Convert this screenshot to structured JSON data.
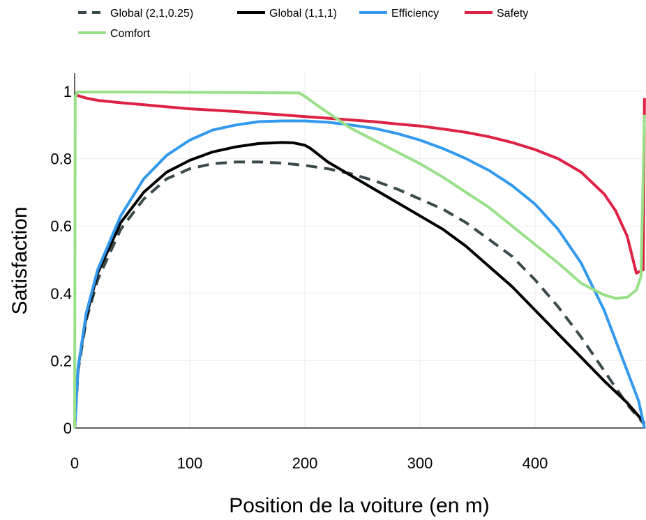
{
  "chart_data": {
    "type": "line",
    "title": "",
    "xlabel": "Position de la voiture (en m)",
    "ylabel": "Satisfaction",
    "xlim": [
      0,
      495
    ],
    "ylim": [
      0,
      1.05
    ],
    "x_ticks": [
      0,
      100,
      200,
      300,
      400
    ],
    "x_tick_labels": [
      "0",
      "100",
      "200",
      "300",
      "400"
    ],
    "y_ticks": [
      0,
      0.2,
      0.4,
      0.6,
      0.8,
      1
    ],
    "y_tick_labels": [
      "0",
      "0.2",
      "0.4",
      "0.6",
      "0.8",
      "1"
    ],
    "grid": true,
    "legend_position": "top-left",
    "series": [
      {
        "name": "Global (2,1,0.25)",
        "color": "#3b4a4a",
        "dash": "dashed",
        "x": [
          0,
          3,
          10,
          20,
          40,
          60,
          80,
          100,
          120,
          140,
          160,
          180,
          200,
          220,
          240,
          260,
          280,
          300,
          320,
          340,
          360,
          380,
          400,
          420,
          440,
          460,
          480,
          490,
          495
        ],
        "y": [
          0,
          0.17,
          0.32,
          0.44,
          0.59,
          0.68,
          0.74,
          0.77,
          0.785,
          0.79,
          0.79,
          0.787,
          0.78,
          0.77,
          0.755,
          0.735,
          0.71,
          0.68,
          0.65,
          0.61,
          0.56,
          0.51,
          0.44,
          0.36,
          0.27,
          0.17,
          0.07,
          0.03,
          0.01
        ]
      },
      {
        "name": "Global (1,1,1)",
        "color": "#000000",
        "dash": "solid",
        "x": [
          0,
          3,
          10,
          20,
          40,
          60,
          80,
          100,
          120,
          140,
          160,
          180,
          190,
          200,
          205,
          220,
          240,
          260,
          280,
          300,
          320,
          340,
          360,
          380,
          400,
          420,
          440,
          460,
          480,
          495
        ],
        "y": [
          0,
          0.18,
          0.33,
          0.46,
          0.61,
          0.7,
          0.76,
          0.795,
          0.82,
          0.835,
          0.845,
          0.848,
          0.847,
          0.84,
          0.83,
          0.79,
          0.75,
          0.71,
          0.67,
          0.63,
          0.59,
          0.54,
          0.48,
          0.42,
          0.35,
          0.28,
          0.21,
          0.14,
          0.075,
          0.015
        ]
      },
      {
        "name": "Efficiency",
        "color": "#3399ee",
        "dash": "solid",
        "x": [
          0,
          3,
          10,
          20,
          40,
          60,
          80,
          100,
          120,
          140,
          160,
          180,
          200,
          220,
          240,
          260,
          280,
          300,
          320,
          340,
          360,
          380,
          400,
          420,
          440,
          460,
          470,
          480,
          490,
          495
        ],
        "y": [
          0,
          0.18,
          0.34,
          0.47,
          0.63,
          0.74,
          0.81,
          0.855,
          0.885,
          0.9,
          0.91,
          0.912,
          0.912,
          0.908,
          0.9,
          0.89,
          0.875,
          0.855,
          0.83,
          0.8,
          0.765,
          0.72,
          0.665,
          0.59,
          0.49,
          0.35,
          0.26,
          0.17,
          0.08,
          0.0
        ]
      },
      {
        "name": "Safety",
        "color": "#dd2244",
        "dash": "solid",
        "x": [
          0,
          10,
          20,
          40,
          60,
          80,
          100,
          120,
          140,
          160,
          180,
          200,
          220,
          240,
          260,
          280,
          300,
          320,
          340,
          360,
          380,
          400,
          420,
          440,
          460,
          470,
          480,
          488,
          494,
          495
        ],
        "y": [
          0.99,
          0.98,
          0.973,
          0.966,
          0.96,
          0.954,
          0.948,
          0.944,
          0.94,
          0.935,
          0.93,
          0.925,
          0.92,
          0.915,
          0.91,
          0.903,
          0.897,
          0.888,
          0.878,
          0.865,
          0.848,
          0.827,
          0.8,
          0.76,
          0.695,
          0.645,
          0.57,
          0.46,
          0.47,
          0.98
        ]
      },
      {
        "name": "Comfort",
        "color": "#99e088",
        "dash": "solid",
        "x": [
          0,
          0.5,
          2,
          10,
          50,
          100,
          150,
          195,
          200,
          210,
          240,
          260,
          280,
          300,
          320,
          340,
          360,
          380,
          400,
          420,
          440,
          460,
          470,
          480,
          488,
          492,
          495
        ],
        "y": [
          0,
          0.98,
          0.998,
          0.998,
          0.998,
          0.997,
          0.996,
          0.995,
          0.985,
          0.96,
          0.89,
          0.855,
          0.82,
          0.785,
          0.745,
          0.7,
          0.655,
          0.6,
          0.545,
          0.49,
          0.43,
          0.395,
          0.385,
          0.388,
          0.41,
          0.45,
          0.93
        ]
      }
    ]
  }
}
